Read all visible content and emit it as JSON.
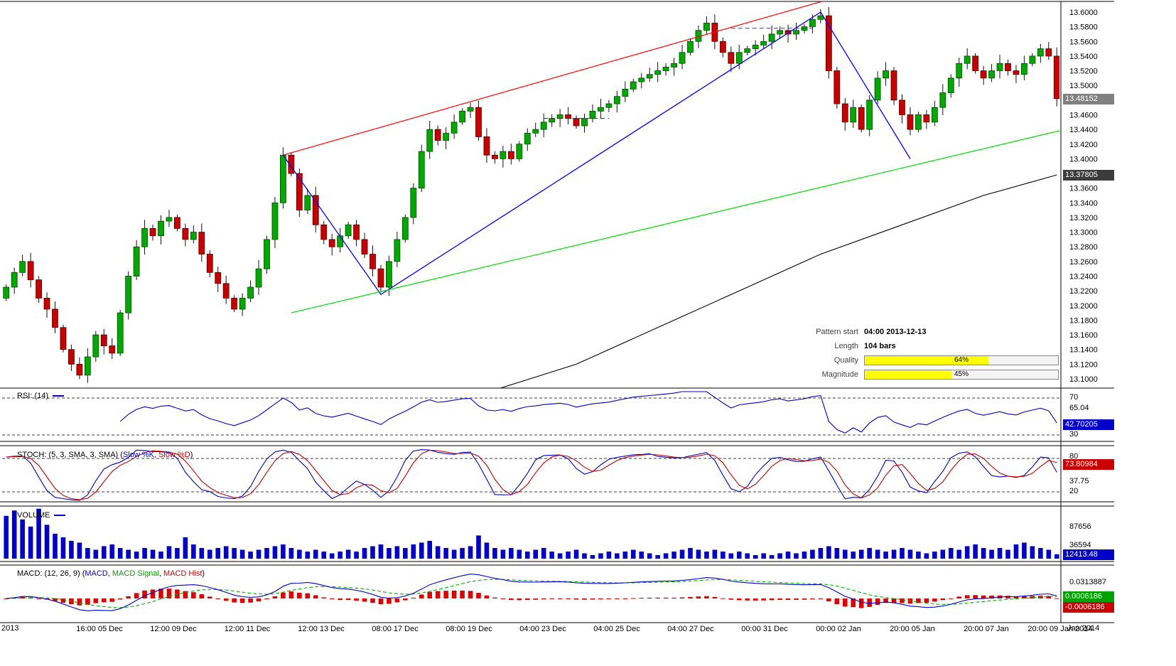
{
  "price_axis": {
    "ticks": [
      13.6,
      13.58,
      13.56,
      13.54,
      13.52,
      13.5,
      13.46,
      13.44,
      13.42,
      13.4,
      13.36,
      13.34,
      13.32,
      13.3,
      13.28,
      13.26,
      13.24,
      13.22,
      13.2,
      13.18,
      13.16,
      13.14,
      13.12,
      13.1
    ],
    "current_price_badge": "13.48152",
    "ma_badge": "13.37805"
  },
  "time_axis": {
    "left_label": "2013",
    "labels": [
      "16:00 05 Dec",
      "12:00 09 Dec",
      "12:00 11 Dec",
      "12:00 13 Dec",
      "08:00 17 Dec",
      "08:00 19 Dec",
      "04:00 23 Dec",
      "04:00 25 Dec",
      "04:00 27 Dec",
      "00:00 31 Dec",
      "00:00 02 Jan",
      "20:00 05 Jan",
      "20:00 07 Jan",
      "20:00 09 Jan 2014"
    ],
    "right_label": "Jan 2014"
  },
  "pattern_info": {
    "start_label": "Pattern start",
    "start_value": "04:00 2013-12-13",
    "length_label": "Length",
    "length_value": "104 bars",
    "quality_label": "Quality",
    "quality_pct": 64,
    "quality_text": "64%",
    "magnitude_label": "Magnitude",
    "magnitude_pct": 45,
    "magnitude_text": "45%"
  },
  "panels": {
    "rsi": {
      "title": "RSI: (14)",
      "upper_label": "70",
      "mid_label": "65.04",
      "lower_label": "30",
      "badge": "42.70205"
    },
    "stoch": {
      "title_prefix": "STOCH: (5, 3, SMA, 3, SMA) (",
      "k_label": "Slow %K",
      "separator": ", ",
      "d_label": "Slow %D",
      "title_suffix": ")",
      "upper_label": "80",
      "mid_label": "37.75",
      "lower_label": "20",
      "badge": "73.80984"
    },
    "volume": {
      "title": "VOLUME",
      "axis_upper": "87656",
      "axis_lower": "36594",
      "badge": "12413.48"
    },
    "macd": {
      "title_prefix": "MACD: (12, 26, 9) (",
      "macd_label": "MACD",
      "signal_label": "MACD Signal",
      "hist_label": "MACD Hist",
      "title_suffix": ")",
      "axis_label": "0.0313887",
      "badge_signal": "0.0006186",
      "badge_hist": "-0.0006186"
    }
  },
  "chart_data": {
    "type": "candlestick",
    "y_range": [
      13.1,
      13.6
    ],
    "closes": [
      13.225,
      13.245,
      13.26,
      13.235,
      13.21,
      13.195,
      13.17,
      13.14,
      13.12,
      13.105,
      13.13,
      13.16,
      13.145,
      13.135,
      13.19,
      13.24,
      13.28,
      13.305,
      13.295,
      13.315,
      13.32,
      13.305,
      13.29,
      13.3,
      13.27,
      13.245,
      13.23,
      13.21,
      13.195,
      13.21,
      13.225,
      13.25,
      13.29,
      13.34,
      13.405,
      13.38,
      13.33,
      13.35,
      13.31,
      13.29,
      13.28,
      13.295,
      13.31,
      13.29,
      13.27,
      13.25,
      13.225,
      13.26,
      13.29,
      13.32,
      13.36,
      13.41,
      13.44,
      13.425,
      13.435,
      13.45,
      13.465,
      13.47,
      13.43,
      13.405,
      13.4,
      13.41,
      13.4,
      13.42,
      13.435,
      13.44,
      13.45,
      13.455,
      13.46,
      13.455,
      13.445,
      13.455,
      13.465,
      13.47,
      13.475,
      13.485,
      13.495,
      13.505,
      13.51,
      13.515,
      13.52,
      13.525,
      13.53,
      13.545,
      13.56,
      13.575,
      13.585,
      13.56,
      13.545,
      13.53,
      13.545,
      13.55,
      13.555,
      13.56,
      13.57,
      13.575,
      13.57,
      13.575,
      13.58,
      13.59,
      13.595,
      13.52,
      13.475,
      13.45,
      13.47,
      13.44,
      13.48,
      13.51,
      13.52,
      13.48,
      13.46,
      13.44,
      13.46,
      13.45,
      13.47,
      13.49,
      13.51,
      13.53,
      13.54,
      13.52,
      13.51,
      13.52,
      13.53,
      13.52,
      13.515,
      13.53,
      13.54,
      13.55,
      13.54,
      13.482
    ],
    "volumes": [
      120000,
      135000,
      110000,
      90000,
      140000,
      95000,
      70000,
      60000,
      50000,
      45000,
      30000,
      25000,
      35000,
      40000,
      30000,
      25000,
      20000,
      30000,
      25000,
      20000,
      35000,
      30000,
      60000,
      40000,
      30000,
      25000,
      30000,
      35000,
      30000,
      25000,
      20000,
      25000,
      30000,
      35000,
      40000,
      30000,
      25000,
      20000,
      25000,
      20000,
      15000,
      20000,
      25000,
      20000,
      30000,
      35000,
      40000,
      30000,
      35000,
      30000,
      40000,
      45000,
      50000,
      35000,
      30000,
      25000,
      30000,
      35000,
      65000,
      45000,
      30000,
      25000,
      30000,
      25000,
      20000,
      25000,
      30000,
      20000,
      15000,
      20000,
      25000,
      15000,
      10000,
      15000,
      20000,
      15000,
      20000,
      25000,
      20000,
      15000,
      10000,
      15000,
      20000,
      25000,
      30000,
      25000,
      20000,
      25000,
      20000,
      15000,
      20000,
      15000,
      10000,
      15000,
      10000,
      15000,
      20000,
      15000,
      20000,
      25000,
      30000,
      35000,
      30000,
      25000,
      20000,
      25000,
      30000,
      25000,
      20000,
      25000,
      30000,
      25000,
      20000,
      15000,
      20000,
      25000,
      30000,
      25000,
      35000,
      40000,
      30000,
      25000,
      30000,
      25000,
      40000,
      45000,
      35000,
      30000,
      25000,
      12413
    ],
    "indicators": {
      "rsi_period": 14,
      "stoch": [
        5,
        3,
        3
      ],
      "macd": [
        12,
        26,
        9
      ]
    },
    "overlays": {
      "upper_trendline": {
        "color": "#ff0000",
        "points": [
          [
            34,
            13.405
          ],
          [
            106,
            13.633
          ]
        ]
      },
      "lower_trendline": {
        "color": "#00dd00",
        "points": [
          [
            35,
            13.19
          ],
          [
            130,
            13.44
          ]
        ]
      },
      "pattern_zigzag": {
        "color": "#0000ff",
        "points": [
          [
            34,
            13.405
          ],
          [
            46,
            13.215
          ],
          [
            100,
            13.6
          ],
          [
            111,
            13.4
          ]
        ]
      },
      "moving_average": {
        "color": "#000000",
        "points": [
          [
            60,
            13.085
          ],
          [
            70,
            13.12
          ],
          [
            80,
            13.17
          ],
          [
            90,
            13.22
          ],
          [
            100,
            13.27
          ],
          [
            110,
            13.31
          ],
          [
            120,
            13.35
          ],
          [
            129,
            13.378
          ]
        ]
      },
      "dashed_segments": [
        {
          "color": "#333333",
          "points": [
            [
              66,
              13.455
            ],
            [
              74,
              13.455
            ]
          ]
        },
        {
          "color": "#3333cc",
          "points": [
            [
              89,
              13.578
            ],
            [
              99,
              13.578
            ]
          ]
        }
      ]
    },
    "colors": {
      "up": "#00a800",
      "down": "#c80000",
      "wick": "#111111",
      "rsi": "#0000c8",
      "stoch_k": "#0000c8",
      "stoch_d": "#c80000",
      "volume": "#0000c8",
      "macd": "#0000c8",
      "macd_signal": "#00b400",
      "macd_hist": "#e00000",
      "trend_upper": "#ff0000",
      "trend_lower": "#00dd00",
      "pattern": "#0000ff",
      "moving_average": "#000000",
      "badge_gray": "#808080",
      "badge_dark": "#3c3c3c",
      "badge_blue": "#0000c8",
      "badge_red": "#c80000",
      "badge_green": "#00a000",
      "progress_fill": "#ffff00"
    }
  }
}
